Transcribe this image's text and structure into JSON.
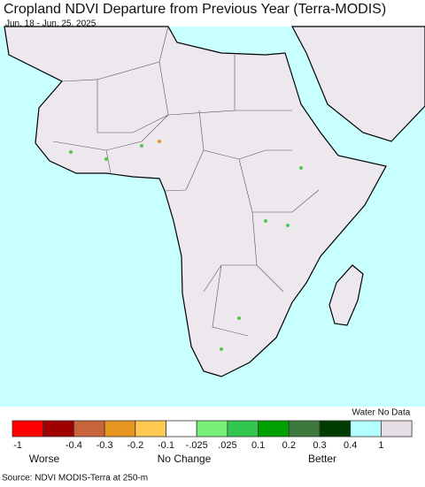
{
  "header": {
    "title": "Cropland NDVI Departure from Previous Year (Terra-MODIS)",
    "subtitle": "Jun. 18 - Jun. 25, 2025"
  },
  "legend": {
    "colors": [
      "#ff0000",
      "#a00000",
      "#c8643c",
      "#e6961e",
      "#ffc850",
      "#ffffff",
      "#78f078",
      "#32c850",
      "#00a000",
      "#3c783c",
      "#003c00",
      "#b4ffff",
      "#e6e0e6"
    ],
    "labels": [
      "-1",
      "-0.4",
      "-0.3",
      "-0.2",
      "-0.1",
      "-.025",
      ".025",
      "0.1",
      "0.2",
      "0.3",
      "0.4",
      "1"
    ],
    "extra_label": "Water No Data",
    "captions": [
      "Worse",
      "No Change",
      "Better"
    ]
  },
  "footer": {
    "source": "Source: NDVI MODIS-Terra at 250-m"
  }
}
